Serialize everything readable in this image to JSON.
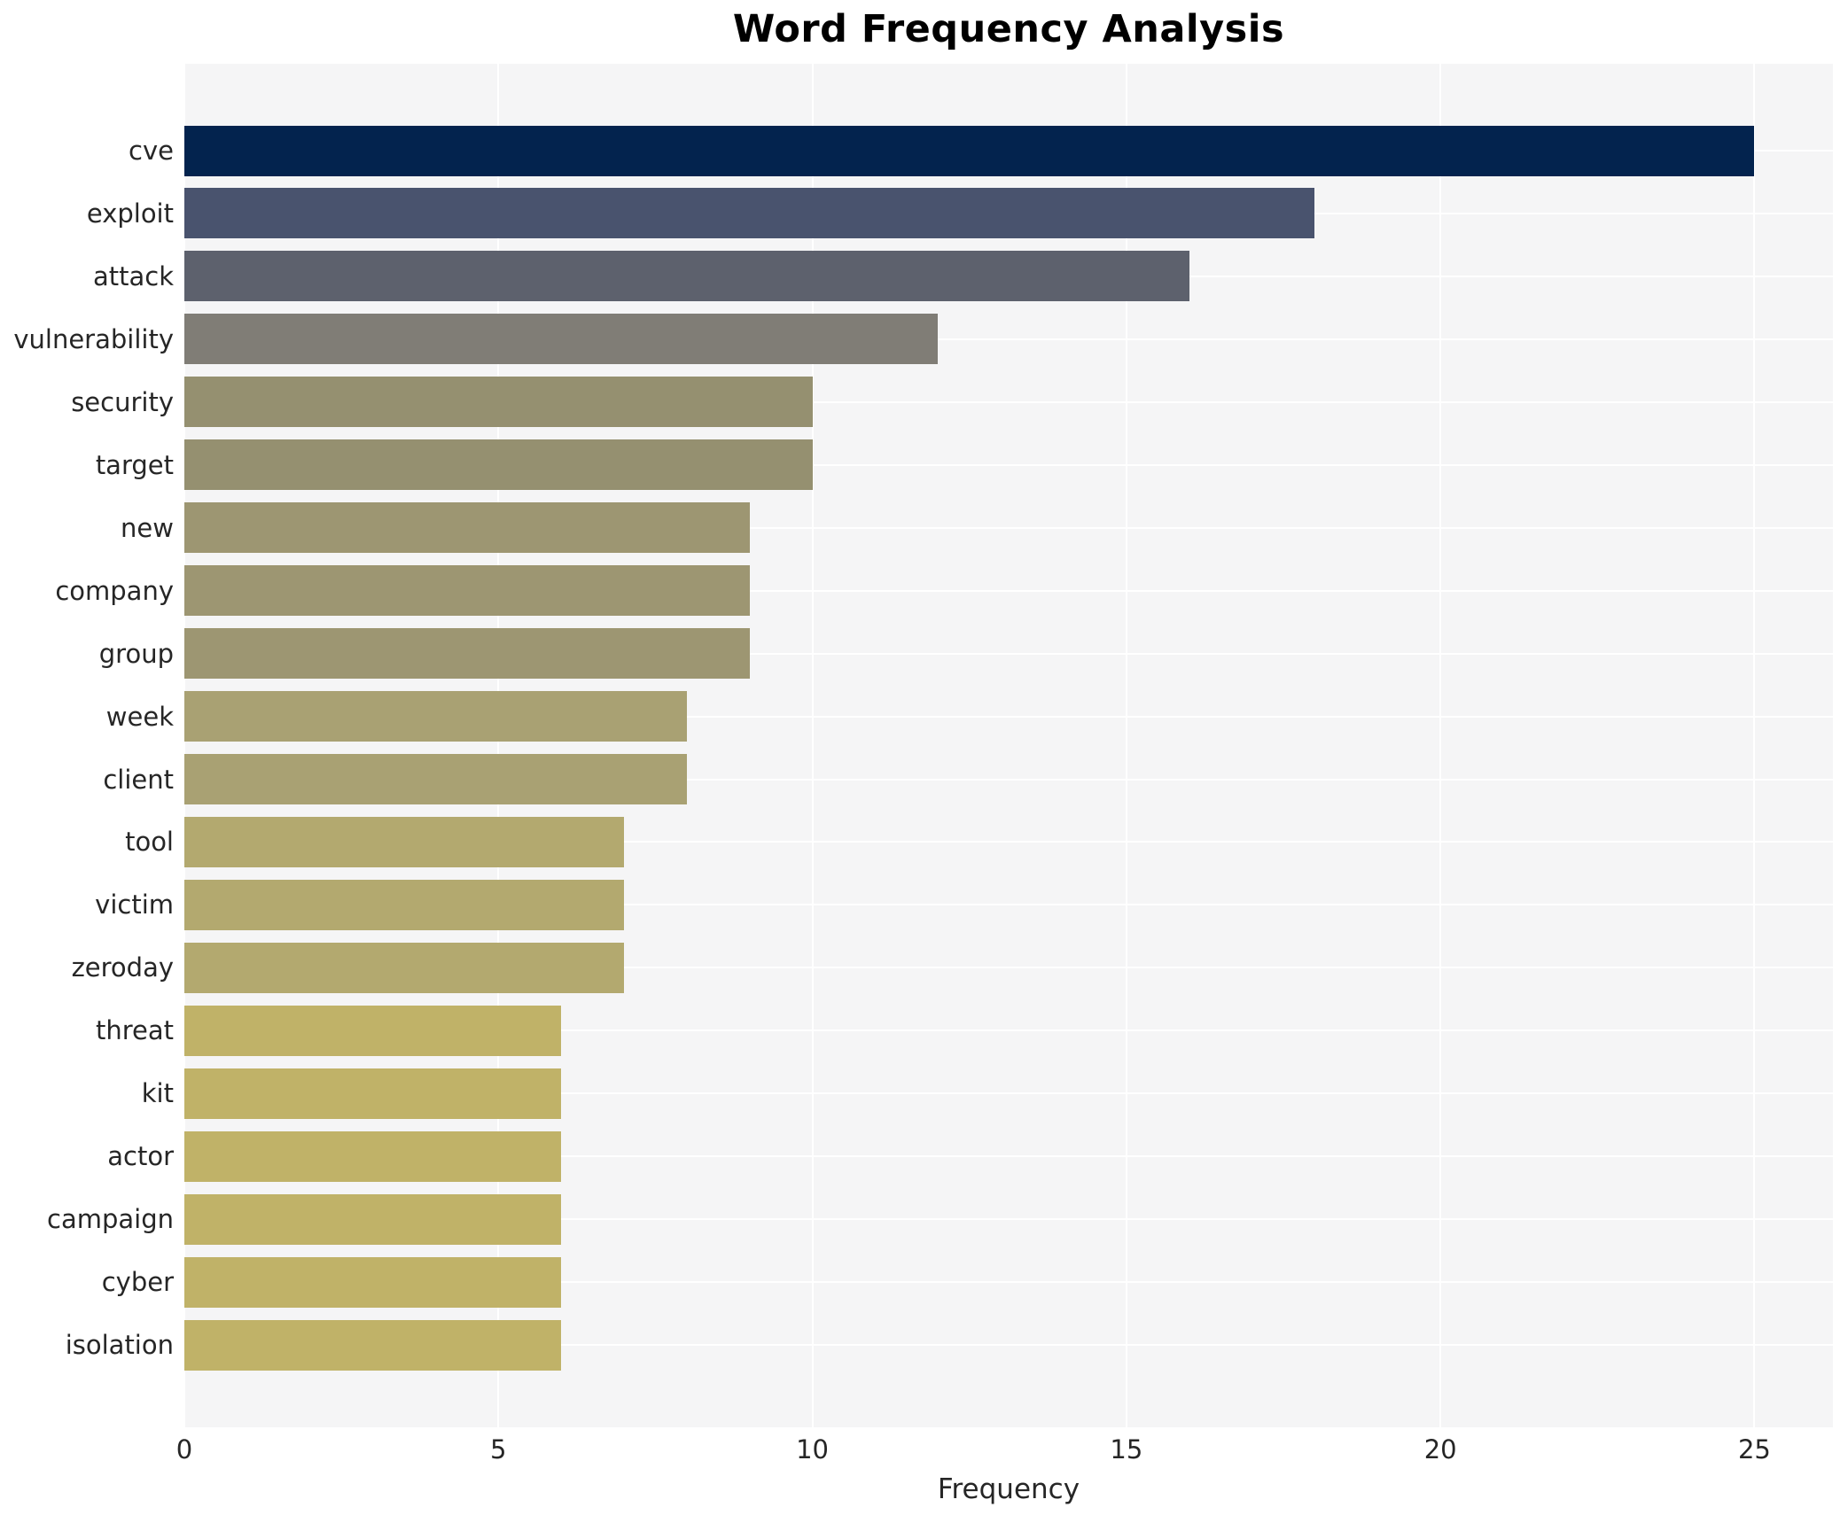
{
  "chart_data": {
    "type": "bar",
    "orientation": "horizontal",
    "title": "Word Frequency Analysis",
    "xlabel": "Frequency",
    "ylabel": "",
    "categories": [
      "cve",
      "exploit",
      "attack",
      "vulnerability",
      "security",
      "target",
      "new",
      "company",
      "group",
      "week",
      "client",
      "tool",
      "victim",
      "zeroday",
      "threat",
      "kit",
      "actor",
      "campaign",
      "cyber",
      "isolation"
    ],
    "values": [
      25,
      18,
      16,
      12,
      10,
      10,
      9,
      9,
      9,
      8,
      8,
      7,
      7,
      7,
      6,
      6,
      6,
      6,
      6,
      6
    ],
    "bar_colors": [
      "#03234e",
      "#49536e",
      "#5d616d",
      "#807d76",
      "#959070",
      "#959070",
      "#9d9672",
      "#9d9672",
      "#9d9672",
      "#a9a173",
      "#a9a173",
      "#b3a96f",
      "#b3a96f",
      "#b3a96f",
      "#c0b268",
      "#c0b268",
      "#c0b268",
      "#c0b268",
      "#c0b268",
      "#c0b268"
    ],
    "xticks": [
      0,
      5,
      10,
      15,
      20,
      25
    ],
    "xlim": [
      0,
      26.25
    ],
    "grid": true,
    "legend": false,
    "plot_bg": "#f5f5f6",
    "grid_color": "#ffffff",
    "title_color": "#000000",
    "tick_label_color": "#262626"
  }
}
